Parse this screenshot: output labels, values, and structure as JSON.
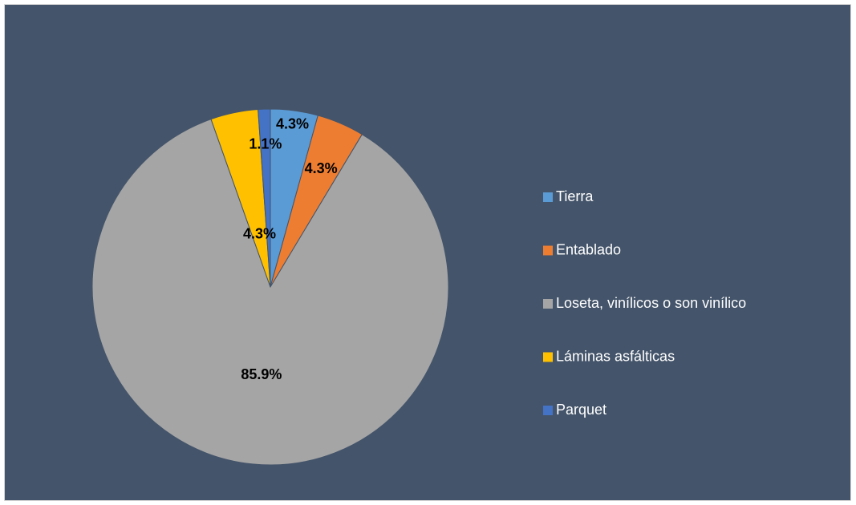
{
  "chart_data": {
    "type": "pie",
    "categories": [
      "Tierra",
      "Entablado",
      "Loseta, vinílicos o son vinílico",
      "Láminas asfálticas",
      "Parquet"
    ],
    "values": [
      4.3,
      4.3,
      85.9,
      4.3,
      1.1
    ],
    "value_labels": [
      "4.3%",
      "4.3%",
      "85.9%",
      "4.3%",
      "1.1%"
    ],
    "colors": [
      "#5b9bd5",
      "#ed7d31",
      "#a5a5a5",
      "#ffc000",
      "#4472c4"
    ],
    "legend": "right"
  }
}
